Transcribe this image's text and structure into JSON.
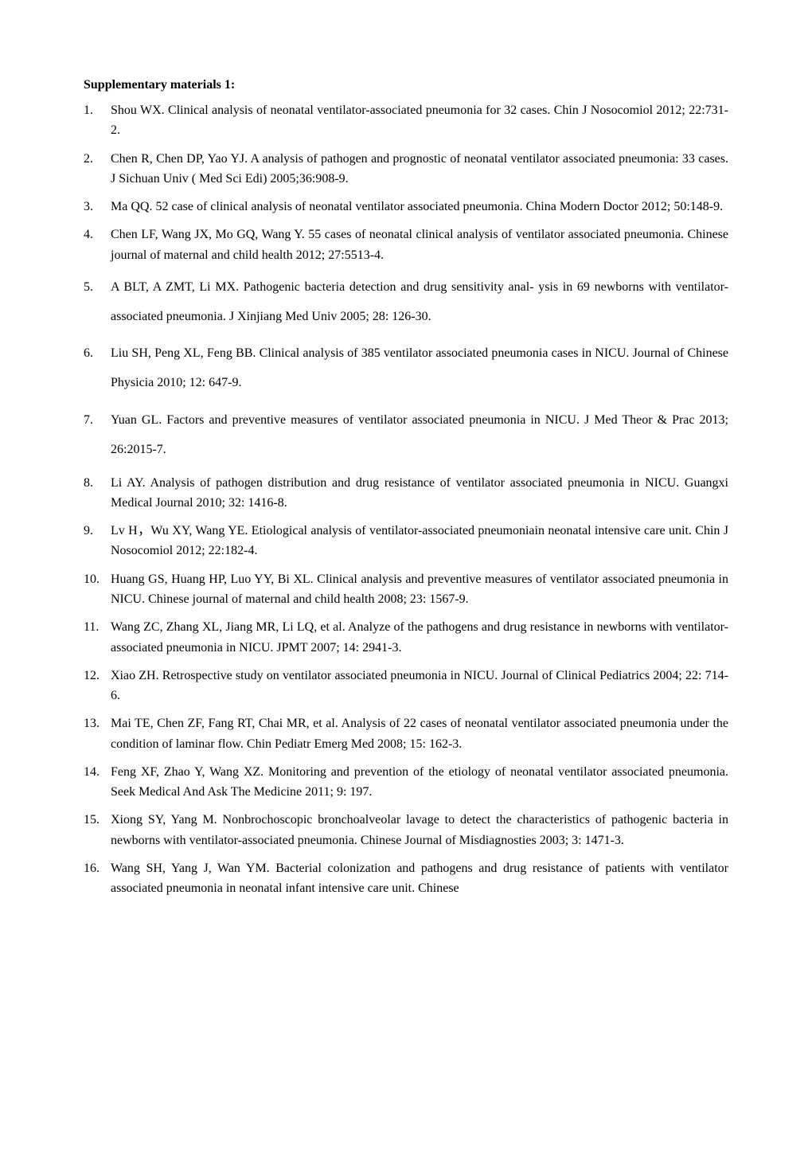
{
  "title": "Supplementary materials 1:",
  "references": [
    {
      "text": "Shou WX. Clinical analysis of neonatal ventilator-associated pneumonia for 32 cases. Chin J Nosocomiol 2012; 22:731-2.",
      "wide": false
    },
    {
      "text": "Chen R, Chen DP, Yao YJ. A analysis of pathogen and prognostic of neonatal ventilator associated pneumonia: 33 cases. J Sichuan Univ ( Med Sci Edi) 2005;36:908-9.",
      "wide": false
    },
    {
      "text": "Ma QQ. 52 case of clinical analysis of neonatal ventilator associated pneumonia. China Modern Doctor 2012; 50:148-9.",
      "wide": false
    },
    {
      "text": "Chen LF, Wang JX, Mo GQ, Wang Y. 55 cases of neonatal clinical analysis of ventilator associated pneumonia. Chinese journal of maternal and child health 2012; 27:5513-4.",
      "wide": false
    },
    {
      "text": "A BLT, A ZMT, Li MX. Pathogenic bacteria detection and drug sensitivity anal- ysis in 69 newborns with ventilator-associated pneumonia. J Xinjiang Med Univ 2005; 28: 126-30.",
      "wide": true
    },
    {
      "text": "Liu SH, Peng XL, Feng BB. Clinical analysis of 385 ventilator associated pneumonia cases in NICU. Journal of Chinese Physicia 2010; 12: 647-9.",
      "wide": true
    },
    {
      "text": "Yuan GL. Factors and preventive measures of ventilator associated pneumonia in NICU. J Med Theor & Prac 2013; 26:2015-7.",
      "wide": true
    },
    {
      "text": "Li AY. Analysis of pathogen distribution and drug resistance of ventilator associated pneumonia in NICU. Guangxi Medical Journal 2010; 32: 1416-8.",
      "wide": false
    },
    {
      "text": "Lv H，Wu XY, Wang YE. Etiological analysis of ventilator-associated pneumoniain neonatal intensive care unit. Chin J Nosocomiol 2012; 22:182-4.",
      "wide": false
    },
    {
      "text": "Huang GS, Huang HP, Luo YY, Bi XL. Clinical analysis and preventive measures of ventilator associated pneumonia in NICU. Chinese journal of maternal and child health 2008; 23: 1567-9.",
      "wide": false
    },
    {
      "text": "Wang ZC, Zhang XL, Jiang MR, Li LQ, et al. Analyze of the pathogens and drug resistance in newborns with ventilator-associated pneumonia in NICU. JPMT 2007; 14: 2941-3.",
      "wide": false
    },
    {
      "text": "Xiao ZH. Retrospective study on ventilator associated pneumonia in NICU. Journal of Clinical Pediatrics 2004; 22: 714-6.",
      "wide": false
    },
    {
      "text": "Mai TE, Chen ZF, Fang RT, Chai MR, et al. Analysis of 22 cases of neonatal ventilator associated pneumonia under the condition of laminar flow. Chin Pediatr Emerg Med 2008; 15: 162-3.",
      "wide": false
    },
    {
      "text": "Feng XF, Zhao Y, Wang XZ. Monitoring and prevention of the etiology of neonatal ventilator associated pneumonia. Seek Medical And Ask The Medicine 2011; 9: 197.",
      "wide": false
    },
    {
      "text": "Xiong SY, Yang M. Nonbrochoscopic bronchoalveolar lavage to detect the characteristics of pathogenic bacteria in newborns with ventilator-associated pneumonia. Chinese Journal of Misdiagnosties 2003; 3: 1471-3.",
      "wide": false
    },
    {
      "text": "Wang SH, Yang J, Wan YM. Bacterial colonization and pathogens and drug resistance of patients with ventilator associated pneumonia in neonatal infant intensive care unit. Chinese",
      "wide": false
    }
  ]
}
